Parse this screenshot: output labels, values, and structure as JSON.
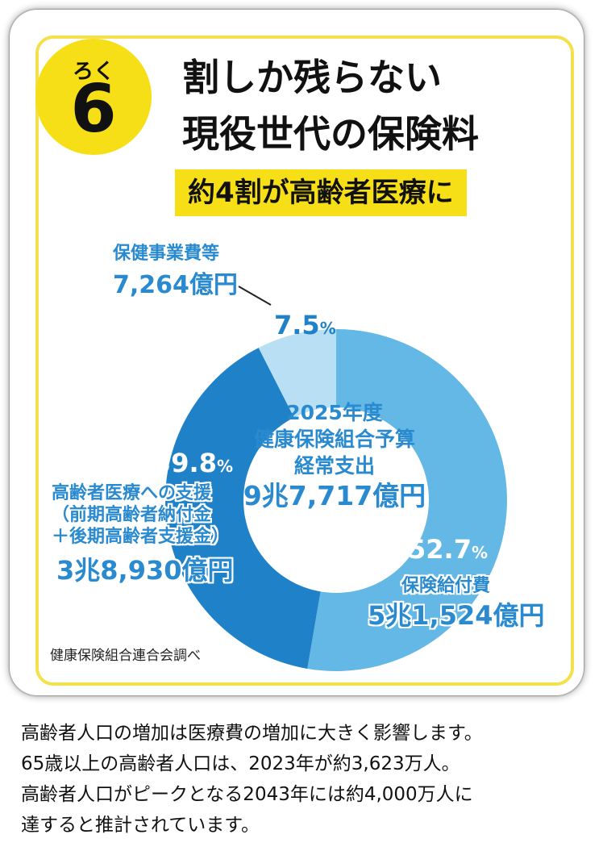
{
  "badge": {
    "ruby": "ろく",
    "number": "6"
  },
  "title": {
    "line1": "割しか残らない",
    "line2": "現役世代の保険料",
    "highlight": "約4割が高齢者医療に"
  },
  "chart_data": {
    "type": "pie",
    "variant": "donut",
    "center": {
      "line1": "2025年度",
      "line2": "健康保険組合予算",
      "line3": "経常支出",
      "total": "9兆7,717億円"
    },
    "slices": [
      {
        "label": "保険給付費",
        "amount": "5兆1,524億円",
        "percent": 52.7,
        "percent_text": "52.7",
        "color": "#64b8e6"
      },
      {
        "label_lines": [
          "高齢者医療への支援",
          "（前期高齢者納付金",
          "＋後期高齢者支援金）"
        ],
        "amount": "3兆8,930億円",
        "percent": 39.8,
        "percent_text": "39.8",
        "color": "#1f82c8"
      },
      {
        "label": "保健事業費等",
        "amount": "7,264億円",
        "percent": 7.5,
        "percent_text": "7.5",
        "color": "#b8dff4"
      }
    ],
    "percent_unit": "%"
  },
  "source": "健康保険組合連合会調べ",
  "body_text": [
    "高齢者人口の増加は医療費の増加に大きく影響します。",
    "65歳以上の高齢者人口は、2023年が約3,623万人。",
    "高齢者人口がピークとなる2043年には約4,000万人に",
    "達すると推計されています。"
  ]
}
